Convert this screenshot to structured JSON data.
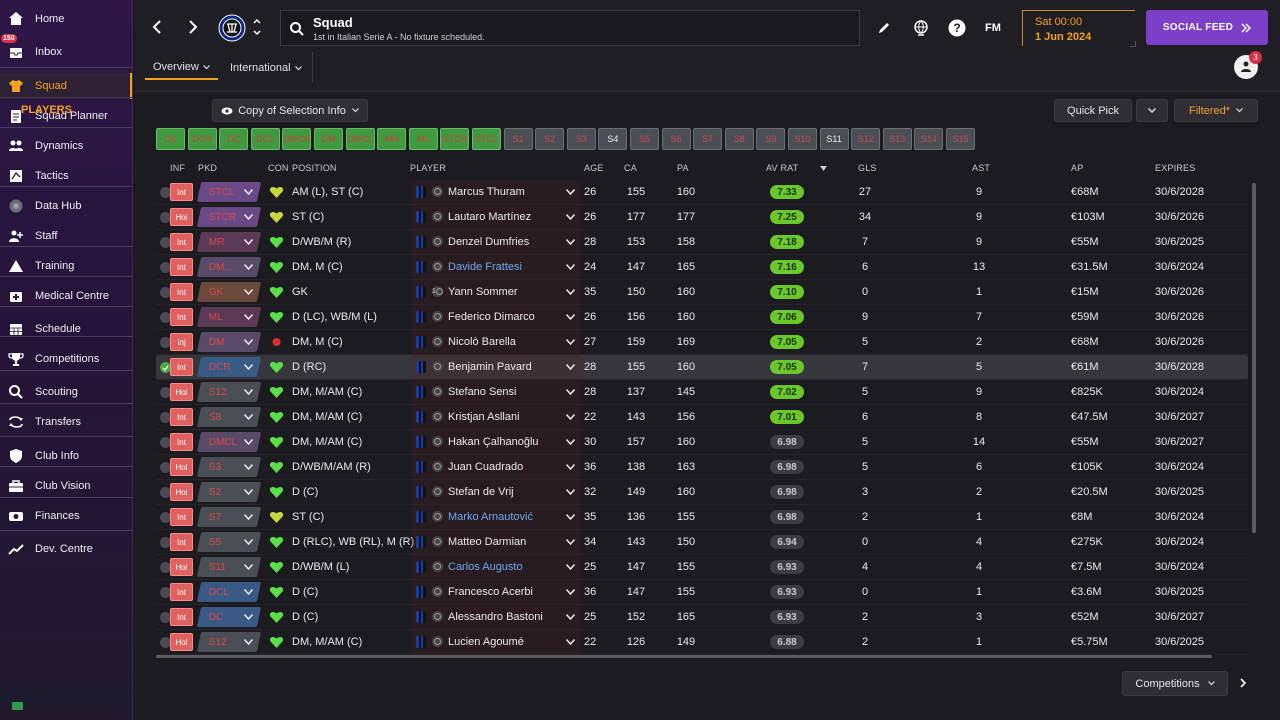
{
  "sidebar": {
    "items": [
      {
        "label": "Home",
        "icon": "home-icon"
      },
      {
        "label": "Inbox",
        "icon": "inbox-icon",
        "badge": "150"
      },
      {
        "label": "Squad",
        "icon": "shirt-icon",
        "active": true
      },
      {
        "label": "Squad Planner",
        "icon": "clipboard-icon"
      },
      {
        "label": "Dynamics",
        "icon": "people-icon"
      },
      {
        "label": "Tactics",
        "icon": "tactics-icon"
      },
      {
        "label": "Data Hub",
        "icon": "data-hub-icon"
      },
      {
        "label": "Staff",
        "icon": "staff-icon"
      },
      {
        "label": "Training",
        "icon": "training-icon"
      },
      {
        "label": "Medical Centre",
        "icon": "medical-icon"
      },
      {
        "label": "Schedule",
        "icon": "calendar-icon"
      },
      {
        "label": "Competitions",
        "icon": "trophy-icon"
      },
      {
        "label": "Scouting",
        "icon": "scouting-icon"
      },
      {
        "label": "Transfers",
        "icon": "transfers-icon"
      },
      {
        "label": "Club Info",
        "icon": "shield-icon"
      },
      {
        "label": "Club Vision",
        "icon": "briefcase-icon"
      },
      {
        "label": "Finances",
        "icon": "finances-icon"
      },
      {
        "label": "Dev. Centre",
        "icon": "dev-centre-icon"
      }
    ]
  },
  "header": {
    "title": "Squad",
    "subtitle": "1st in Italian Serie A - No fixture scheduled.",
    "tabs": [
      {
        "label": "Overview"
      },
      {
        "label": "International"
      }
    ],
    "fm_label": "FM",
    "date_day": "Sat 00:00",
    "date": "1 Jun 2024",
    "social_feed": "SOCIAL FEED",
    "notif_count": "3"
  },
  "players_panel": {
    "title": "PLAYERS",
    "copy_button": "Copy of Selection Info",
    "quick_pick": "Quick Pick",
    "filtered": "Filtered*",
    "positions": [
      "GK",
      "DCR",
      "DC",
      "DCL",
      "DMCR",
      "DM",
      "DMCL",
      "MR",
      "ML",
      "STCR",
      "STCL",
      "S1",
      "S2",
      "S3",
      "S4",
      "S5",
      "S6",
      "S7",
      "S8",
      "S9",
      "S10",
      "S11",
      "S12",
      "S13",
      "S14",
      "S15"
    ],
    "headers": {
      "inf": "INF",
      "pkd": "PKD",
      "con": "CON",
      "position": "POSITION",
      "player": "PLAYER",
      "age": "AGE",
      "ca": "CA",
      "pa": "PA",
      "av_rat": "AV RAT",
      "gls": "GLS",
      "ast": "AST",
      "ap": "AP",
      "expires": "EXPIRES"
    },
    "competitions": "Competitions"
  },
  "players": [
    {
      "inf": "Int",
      "pkd": "STCL",
      "pkd_color": "#6a4a86",
      "con": "yellow",
      "position": "AM (L), ST (C)",
      "name": "Marcus Thuram",
      "link": false,
      "age": "26",
      "ca": "155",
      "pa": "160",
      "av": "7.33",
      "av_high": true,
      "gls": "27",
      "ast": "9",
      "ap": "€68M",
      "expires": "30/6/2028"
    },
    {
      "inf": "Hol",
      "pkd": "STCR",
      "pkd_color": "#6a4a86",
      "con": "yellow",
      "position": "ST (C)",
      "name": "Lautaro Martínez",
      "link": false,
      "age": "26",
      "ca": "177",
      "pa": "177",
      "av": "7.25",
      "av_high": true,
      "gls": "34",
      "ast": "9",
      "ap": "€103M",
      "expires": "30/6/2026"
    },
    {
      "inf": "Int",
      "pkd": "MR",
      "pkd_color": "#5c3a56",
      "con": "green",
      "position": "D/WB/M (R)",
      "name": "Denzel Dumfries",
      "link": false,
      "age": "28",
      "ca": "153",
      "pa": "158",
      "av": "7.18",
      "av_high": true,
      "gls": "7",
      "ast": "9",
      "ap": "€55M",
      "expires": "30/6/2025"
    },
    {
      "inf": "Int",
      "pkd": "DM...",
      "pkd_color": "#5a4a6a",
      "con": "green",
      "position": "DM, M (C)",
      "name": "Davide Frattesi",
      "link": true,
      "age": "24",
      "ca": "147",
      "pa": "165",
      "av": "7.16",
      "av_high": true,
      "gls": "6",
      "ast": "13",
      "ap": "€31.5M",
      "expires": "30/6/2024"
    },
    {
      "inf": "Int",
      "pkd": "GK",
      "pkd_color": "#6a4a3a",
      "con": "green",
      "position": "GK",
      "name": "Yann Sommer",
      "link": false,
      "age": "35",
      "ca": "150",
      "pa": "160",
      "av": "7.10",
      "av_high": true,
      "gls": "0",
      "ast": "1",
      "ap": "€15M",
      "expires": "30/6/2026"
    },
    {
      "inf": "Int",
      "pkd": "ML",
      "pkd_color": "#5c3a56",
      "con": "green",
      "position": "D (LC), WB/M (L)",
      "name": "Federico Dimarco",
      "link": false,
      "age": "26",
      "ca": "156",
      "pa": "160",
      "av": "7.06",
      "av_high": true,
      "gls": "9",
      "ast": "7",
      "ap": "€59M",
      "expires": "30/6/2026"
    },
    {
      "inf": "Inj",
      "pkd": "DM",
      "pkd_color": "#5a4a6a",
      "con": "red",
      "position": "DM, M (C)",
      "name": "Nicolò Barella",
      "link": false,
      "age": "27",
      "ca": "159",
      "pa": "169",
      "av": "7.05",
      "av_high": true,
      "gls": "5",
      "ast": "2",
      "ap": "€68M",
      "expires": "30/6/2026"
    },
    {
      "inf": "Int",
      "pkd": "DCR",
      "pkd_color": "#3a5a86",
      "con": "green",
      "position": "D (RC)",
      "name": "Benjamin Pavard",
      "link": false,
      "age": "28",
      "ca": "155",
      "pa": "160",
      "av": "7.05",
      "av_high": true,
      "gls": "7",
      "ast": "5",
      "ap": "€61M",
      "expires": "30/6/2028",
      "selected": true
    },
    {
      "inf": "Hol",
      "pkd": "S12",
      "pkd_color": "#4a4f55",
      "con": "green",
      "position": "DM, M/AM (C)",
      "name": "Stefano Sensi",
      "link": false,
      "age": "28",
      "ca": "137",
      "pa": "145",
      "av": "7.02",
      "av_high": true,
      "gls": "5",
      "ast": "9",
      "ap": "€825K",
      "expires": "30/6/2024"
    },
    {
      "inf": "Int",
      "pkd": "S8",
      "pkd_color": "#4a4f55",
      "con": "green",
      "position": "DM, M/AM (C)",
      "name": "Kristjan Asllani",
      "link": false,
      "age": "22",
      "ca": "143",
      "pa": "156",
      "av": "7.01",
      "av_high": true,
      "gls": "6",
      "ast": "8",
      "ap": "€47.5M",
      "expires": "30/6/2027"
    },
    {
      "inf": "Int",
      "pkd": "DMCL",
      "pkd_color": "#5a4a6a",
      "con": "green",
      "position": "DM, M/AM (C)",
      "name": "Hakan Çalhanoğlu",
      "link": false,
      "age": "30",
      "ca": "157",
      "pa": "160",
      "av": "6.98",
      "av_high": false,
      "gls": "5",
      "ast": "14",
      "ap": "€55M",
      "expires": "30/6/2027"
    },
    {
      "inf": "Hol",
      "pkd": "S3",
      "pkd_color": "#4a4f55",
      "con": "green",
      "position": "D/WB/M/AM (R)",
      "name": "Juan Cuadrado",
      "link": false,
      "age": "36",
      "ca": "138",
      "pa": "163",
      "av": "6.98",
      "av_high": false,
      "gls": "5",
      "ast": "6",
      "ap": "€105K",
      "expires": "30/6/2024"
    },
    {
      "inf": "Hol",
      "pkd": "S2",
      "pkd_color": "#4a4f55",
      "con": "green",
      "position": "D (C)",
      "name": "Stefan de Vrij",
      "link": false,
      "age": "32",
      "ca": "149",
      "pa": "160",
      "av": "6.98",
      "av_high": false,
      "gls": "3",
      "ast": "2",
      "ap": "€20.5M",
      "expires": "30/6/2025"
    },
    {
      "inf": "Int",
      "pkd": "S7",
      "pkd_color": "#4a4f55",
      "con": "yellow",
      "position": "ST (C)",
      "name": "Marko Arnautović",
      "link": true,
      "age": "35",
      "ca": "136",
      "pa": "155",
      "av": "6.98",
      "av_high": false,
      "gls": "2",
      "ast": "1",
      "ap": "€8M",
      "expires": "30/6/2024"
    },
    {
      "inf": "Int",
      "pkd": "S5",
      "pkd_color": "#4a4f55",
      "con": "green",
      "position": "D (RLC), WB (RL), M (R)",
      "name": "Matteo Darmian",
      "link": false,
      "age": "34",
      "ca": "143",
      "pa": "150",
      "av": "6.94",
      "av_high": false,
      "gls": "0",
      "ast": "4",
      "ap": "€275K",
      "expires": "30/6/2024"
    },
    {
      "inf": "Hol",
      "pkd": "S11",
      "pkd_color": "#4a4f55",
      "con": "green",
      "position": "D/WB/M (L)",
      "name": "Carlos Augusto",
      "link": true,
      "age": "25",
      "ca": "147",
      "pa": "155",
      "av": "6.93",
      "av_high": false,
      "gls": "4",
      "ast": "4",
      "ap": "€7.5M",
      "expires": "30/6/2024"
    },
    {
      "inf": "Int",
      "pkd": "DCL",
      "pkd_color": "#3a5a86",
      "con": "green",
      "position": "D (C)",
      "name": "Francesco Acerbi",
      "link": false,
      "age": "36",
      "ca": "147",
      "pa": "155",
      "av": "6.93",
      "av_high": false,
      "gls": "0",
      "ast": "1",
      "ap": "€3.6M",
      "expires": "30/6/2025"
    },
    {
      "inf": "Int",
      "pkd": "DC",
      "pkd_color": "#3a5a86",
      "con": "green",
      "position": "D (C)",
      "name": "Alessandro Bastoni",
      "link": false,
      "age": "25",
      "ca": "152",
      "pa": "165",
      "av": "6.93",
      "av_high": false,
      "gls": "2",
      "ast": "3",
      "ap": "€52M",
      "expires": "30/6/2027"
    },
    {
      "inf": "Hol",
      "pkd": "S12",
      "pkd_color": "#4a4f55",
      "con": "green",
      "position": "DM, M/AM (C)",
      "name": "Lucien Agoumé",
      "link": false,
      "age": "22",
      "ca": "126",
      "pa": "149",
      "av": "6.88",
      "av_high": false,
      "gls": "2",
      "ast": "1",
      "ap": "€5.75M",
      "expires": "30/6/2025"
    }
  ]
}
